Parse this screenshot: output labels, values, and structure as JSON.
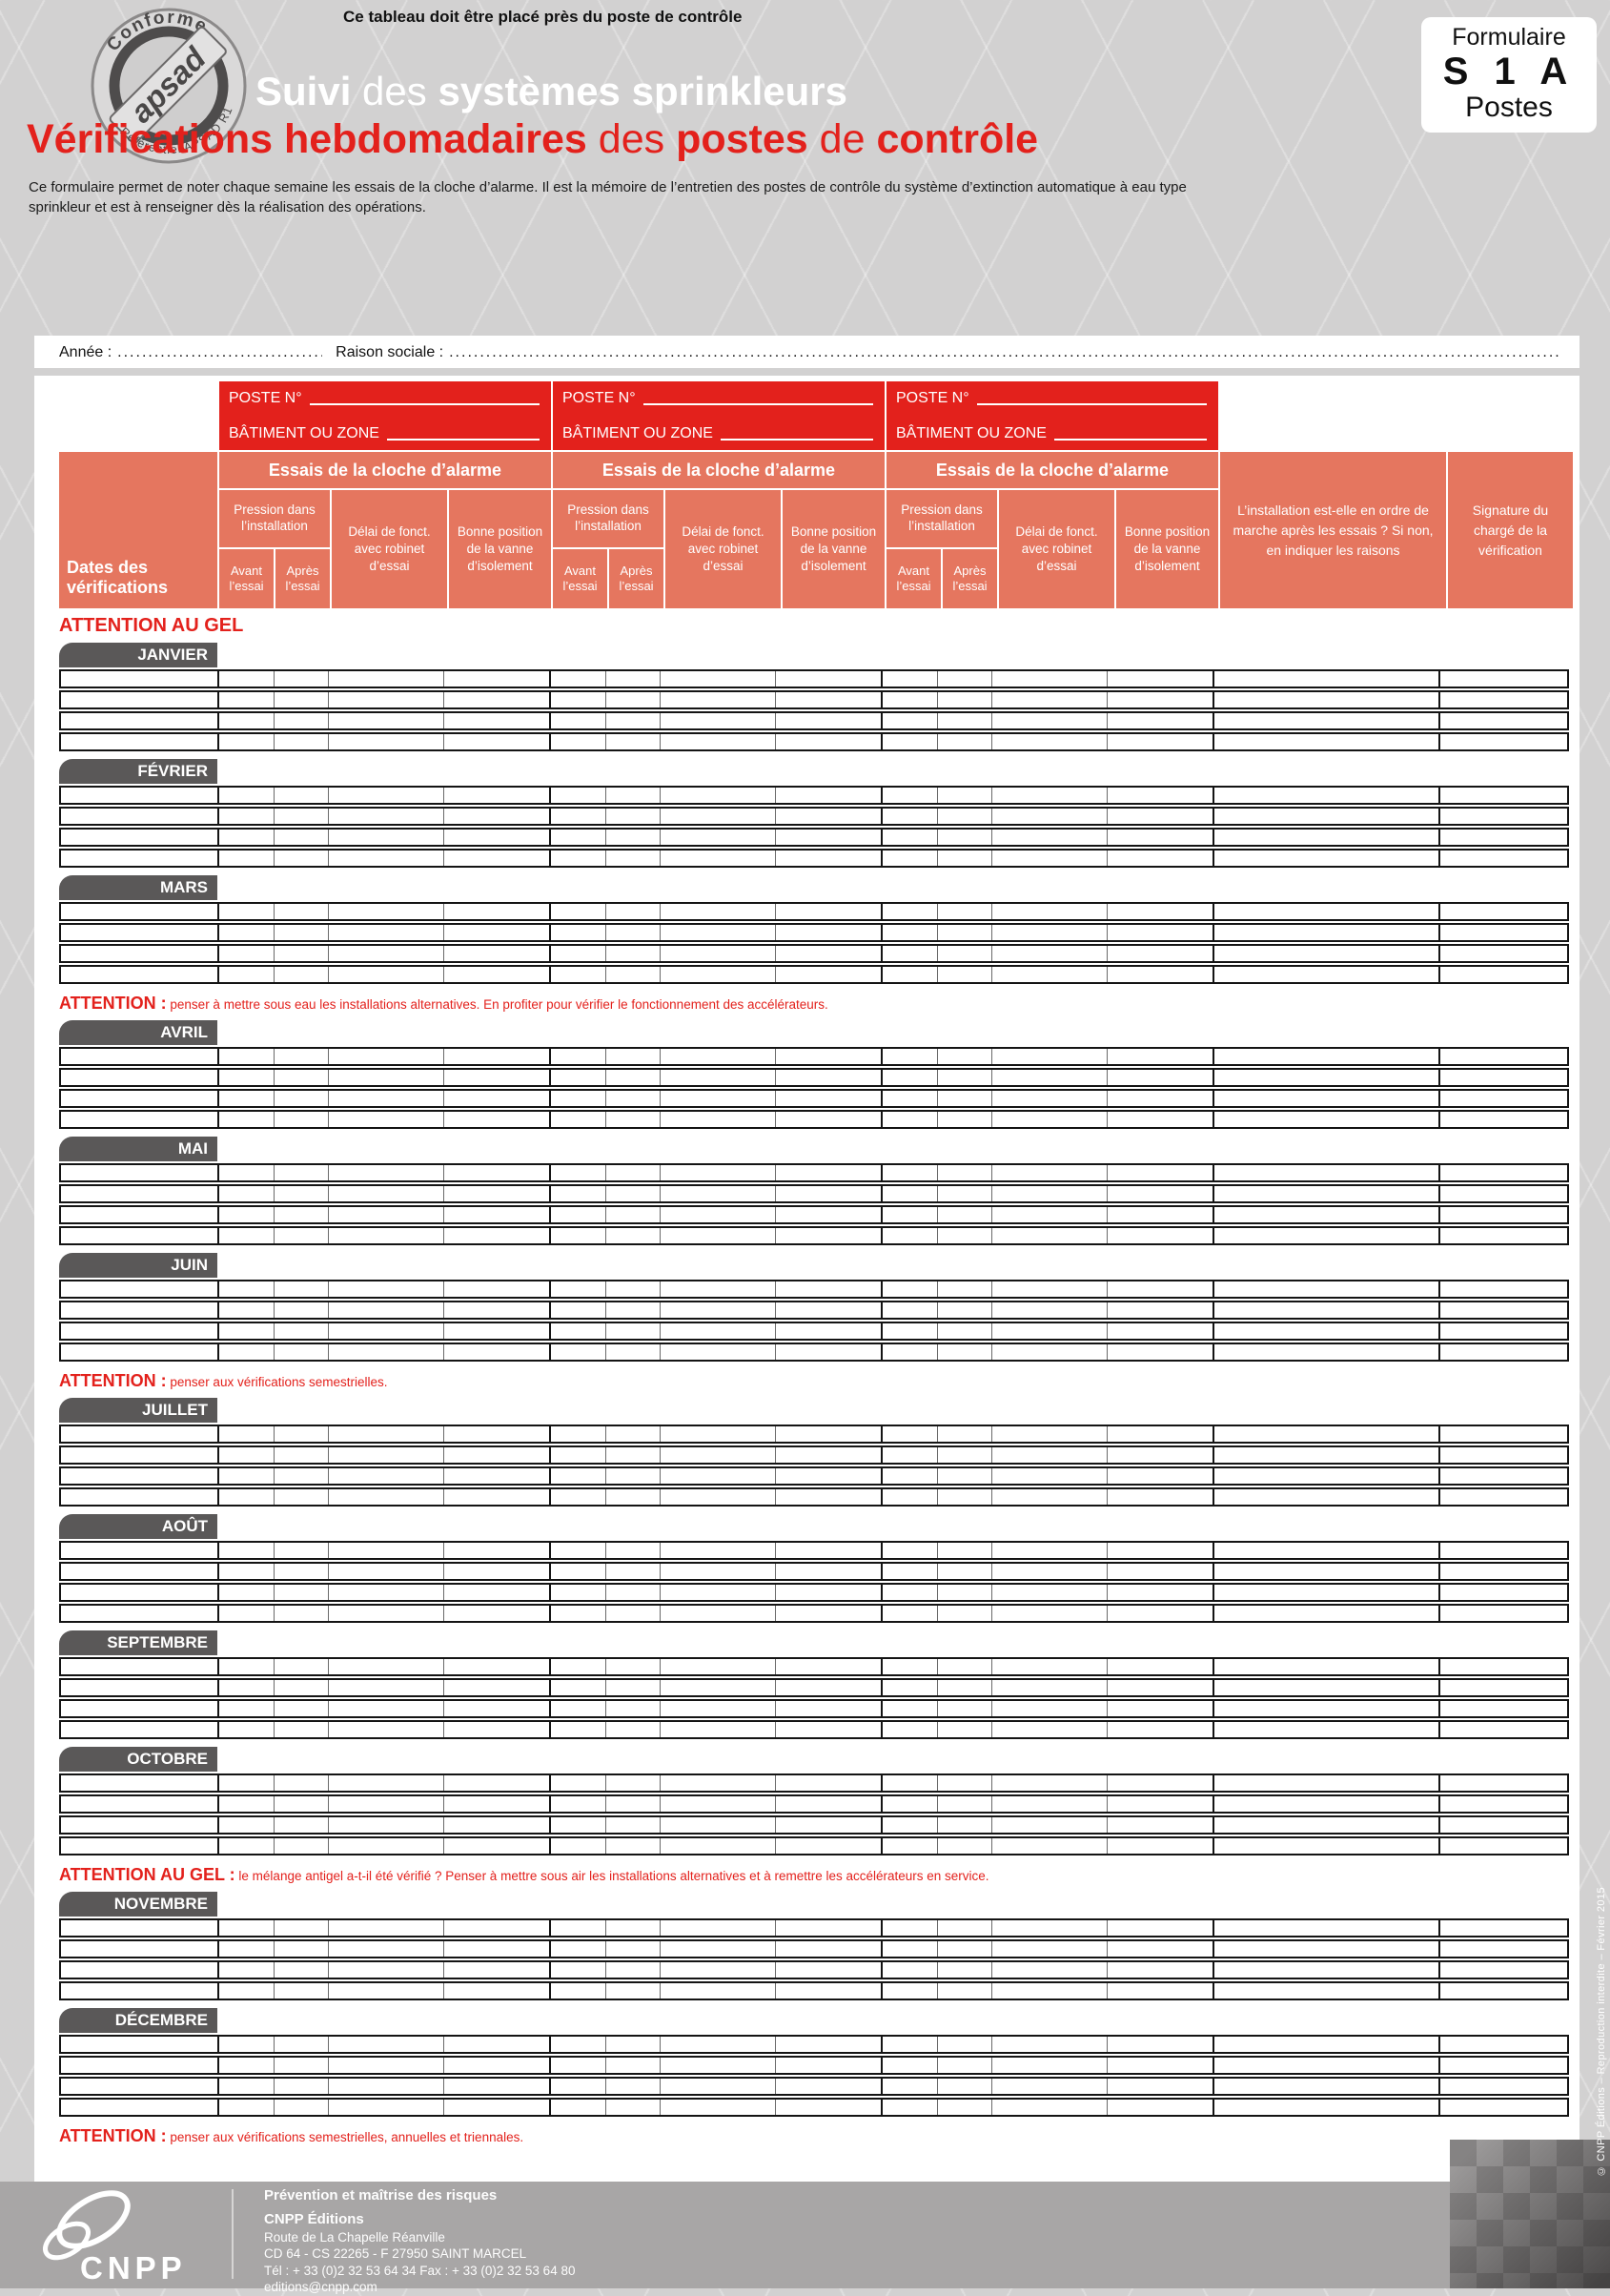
{
  "colors": {
    "red": "#e3211c",
    "salmon": "#e5765f",
    "tab_gray": "#5a5858",
    "footer_gray": "#a8a6a6",
    "page_gray": "#d2d1d1"
  },
  "top_note": "Ce tableau doit être placé près du poste de contrôle",
  "form_code_box": {
    "line1": "Formulaire",
    "line2": "S 1 A",
    "line3": "Postes"
  },
  "seal": {
    "top": "Conforme",
    "center": "apsad",
    "bottom": "Référentiel APSAD R1"
  },
  "title": {
    "white_b1": "Suivi",
    "white_r1": " des ",
    "white_b2": "systèmes sprinkleurs",
    "red_b1": "Vérifications hebdomadaires",
    "red_r1": " des ",
    "red_b2": "postes",
    "red_r2": " de ",
    "red_b3": "contrôle"
  },
  "intro": "Ce formulaire permet de noter chaque semaine les essais de la cloche d’alarme. Il est la mémoire de l’entretien des postes de contrôle du système d’extinction automatique à eau type sprinkleur et est à renseigner dès la réalisation des opérations.",
  "id_line": {
    "annee_label": "Année :",
    "annee_dots": "......................................................",
    "raison_label": "Raison sociale :",
    "raison_dots": "........................................................................................................................................................................................................................................................................................................"
  },
  "table_header": {
    "poste": "POSTE N°",
    "batiment": "BÂTIMENT OU ZONE",
    "dates": "Dates des vérifications",
    "essais": "Essais de la cloche d’alarme",
    "pression": "Pression dans l’installation",
    "avant": "Avant l’essai",
    "apres": "Après l’essai",
    "delai": "Délai de fonct. avec robinet d’essai",
    "bonne": "Bonne position de la vanne d’isolement",
    "installation": "L’installation est-elle en ordre de marche après les essais ? Si non, en indiquer les raisons",
    "signature": "Signature du chargé de la vérification"
  },
  "rows_per_month": 4,
  "months": [
    {
      "label": "JANVIER",
      "note": {
        "prefix": "ATTENTION AU GEL",
        "text": ""
      }
    },
    {
      "label": "FÉVRIER"
    },
    {
      "label": "MARS"
    },
    {
      "label": "AVRIL",
      "note": {
        "prefix": "ATTENTION :",
        "text": "penser à mettre sous eau les installations alternatives. En profiter pour vérifier le fonctionnement des accélérateurs."
      }
    },
    {
      "label": "MAI"
    },
    {
      "label": "JUIN"
    },
    {
      "label": "JUILLET",
      "note": {
        "prefix": "ATTENTION :",
        "text": "penser aux vérifications semestrielles."
      }
    },
    {
      "label": "AOÛT"
    },
    {
      "label": "SEPTEMBRE"
    },
    {
      "label": "OCTOBRE"
    },
    {
      "label": "NOVEMBRE",
      "note": {
        "prefix": "ATTENTION AU GEL :",
        "text": "le mélange antigel a-t-il été vérifié ? Penser à mettre sous air les installations alternatives et à remettre les accélérateurs en service."
      }
    },
    {
      "label": "DÉCEMBRE"
    }
  ],
  "closing_note": {
    "prefix": "ATTENTION :",
    "text": "penser aux vérifications semestrielles, annuelles et triennales."
  },
  "footer": {
    "tagline": "Prévention et maîtrise des risques",
    "org": "CNPP Éditions",
    "address1": "Route de La Chapelle Réanville",
    "address2": "CD 64 - CS 22265 - F 27950 SAINT MARCEL",
    "phone": "Tél : + 33 (0)2 32 53 64 34 Fax : + 33 (0)2 32 53 64 80",
    "email": "editions@cnpp.com",
    "logo_text": "CNPP"
  },
  "side_note": "© CNPP Éditions – Reproduction interdite – Février 2015"
}
